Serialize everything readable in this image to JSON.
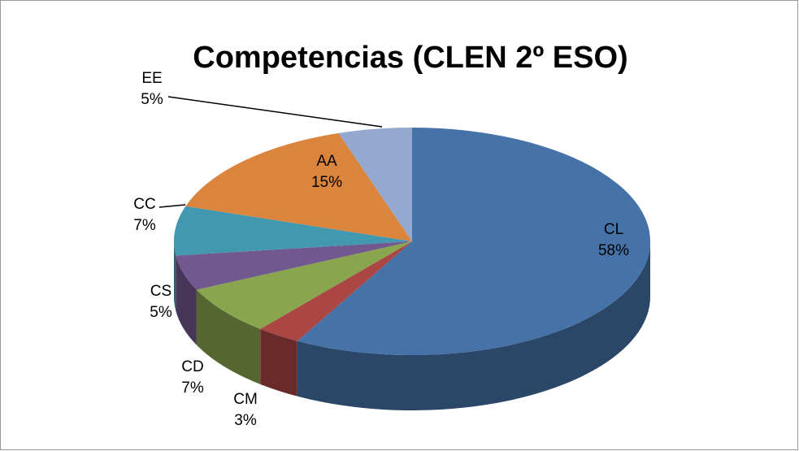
{
  "chart_data": {
    "type": "pie",
    "title": "Competencias (CLEN 2º ESO)",
    "categories": [
      "CL",
      "CM",
      "CD",
      "CS",
      "CC",
      "AA",
      "EE"
    ],
    "values": [
      58,
      3,
      7,
      5,
      7,
      15,
      5
    ],
    "value_labels": [
      "58%",
      "3%",
      "7%",
      "5%",
      "7%",
      "15%",
      "5%"
    ],
    "colors": [
      "#4572a7",
      "#aa4643",
      "#89a54e",
      "#71588f",
      "#4198af",
      "#db843d",
      "#93a9cf"
    ]
  }
}
